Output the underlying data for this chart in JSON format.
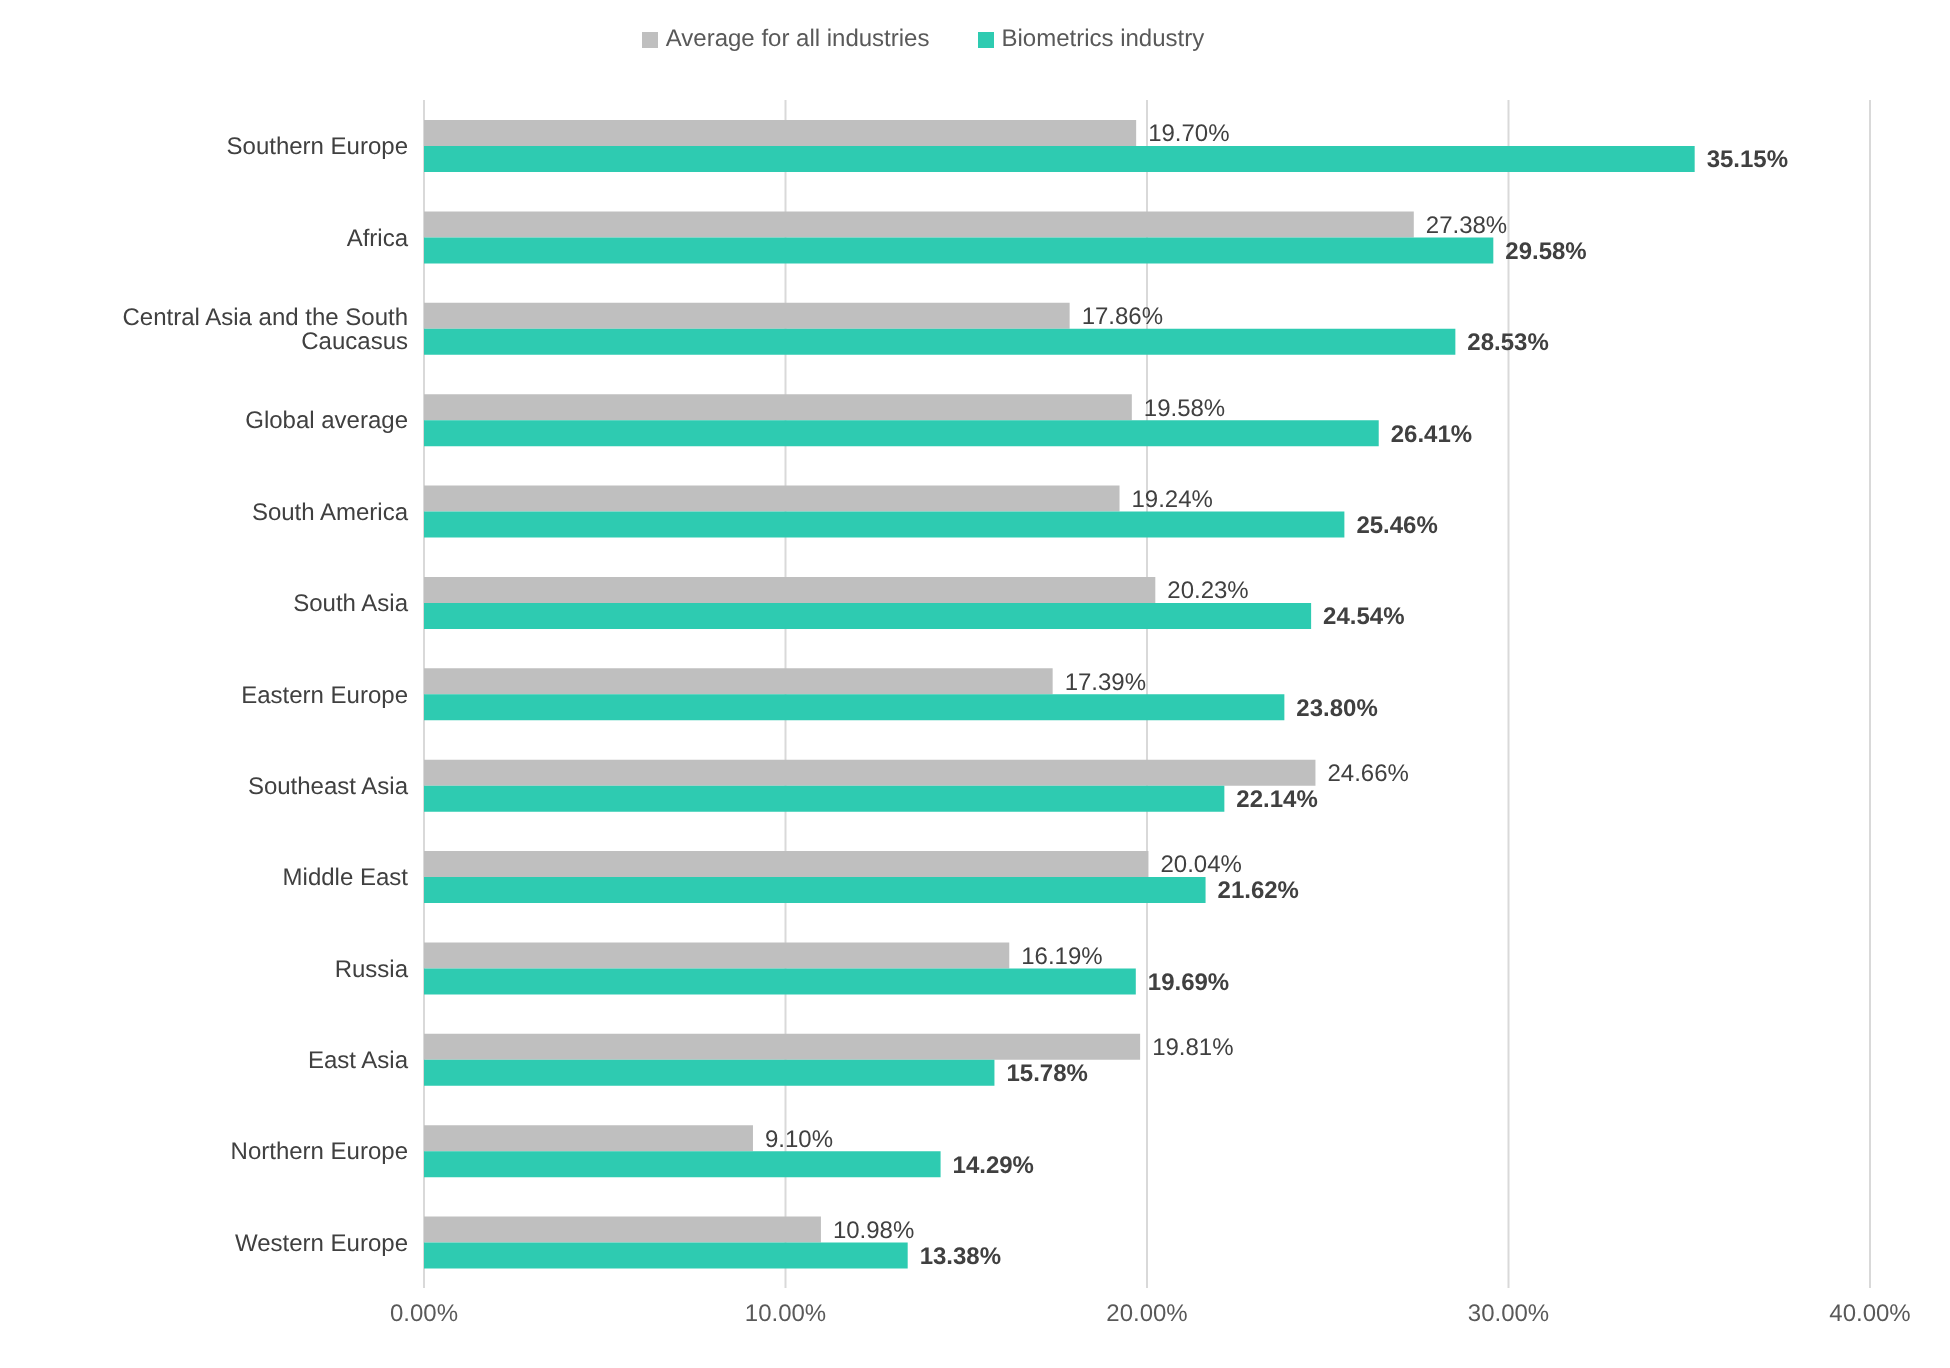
{
  "chart_data": {
    "type": "bar",
    "orientation": "horizontal",
    "categories": [
      "Southern Europe",
      "Africa",
      "Central Asia and the South Caucasus",
      "Global average",
      "South America",
      "South Asia",
      "Eastern Europe",
      "Southeast Asia",
      "Middle East",
      "Russia",
      "East Asia",
      "Northern Europe",
      "Western Europe"
    ],
    "series": [
      {
        "name": "Average for all industries",
        "color": "#bfbfbf",
        "values": [
          19.7,
          27.38,
          17.86,
          19.58,
          19.24,
          20.23,
          17.39,
          24.66,
          20.04,
          16.19,
          19.81,
          9.1,
          10.98
        ],
        "value_labels": [
          "19.70%",
          "27.38%",
          "17.86%",
          "19.58%",
          "19.24%",
          "20.23%",
          "17.39%",
          "24.66%",
          "20.04%",
          "16.19%",
          "19.81%",
          "9.10%",
          "10.98%"
        ]
      },
      {
        "name": "Biometrics industry",
        "color": "#2ecbb1",
        "values": [
          35.15,
          29.58,
          28.53,
          26.41,
          25.46,
          24.54,
          23.8,
          22.14,
          21.62,
          19.69,
          15.78,
          14.29,
          13.38
        ],
        "value_labels": [
          "35.15%",
          "29.58%",
          "28.53%",
          "26.41%",
          "25.46%",
          "24.54%",
          "23.80%",
          "22.14%",
          "21.62%",
          "19.69%",
          "15.78%",
          "14.29%",
          "13.38%"
        ]
      }
    ],
    "xlim": [
      0,
      40
    ],
    "xticks": [
      {
        "value": 0,
        "label": "0.00%"
      },
      {
        "value": 10,
        "label": "10.00%"
      },
      {
        "value": 20,
        "label": "20.00%"
      },
      {
        "value": 30,
        "label": "30.00%"
      },
      {
        "value": 40,
        "label": "40.00%"
      }
    ],
    "grid": "x",
    "legend": "top"
  }
}
